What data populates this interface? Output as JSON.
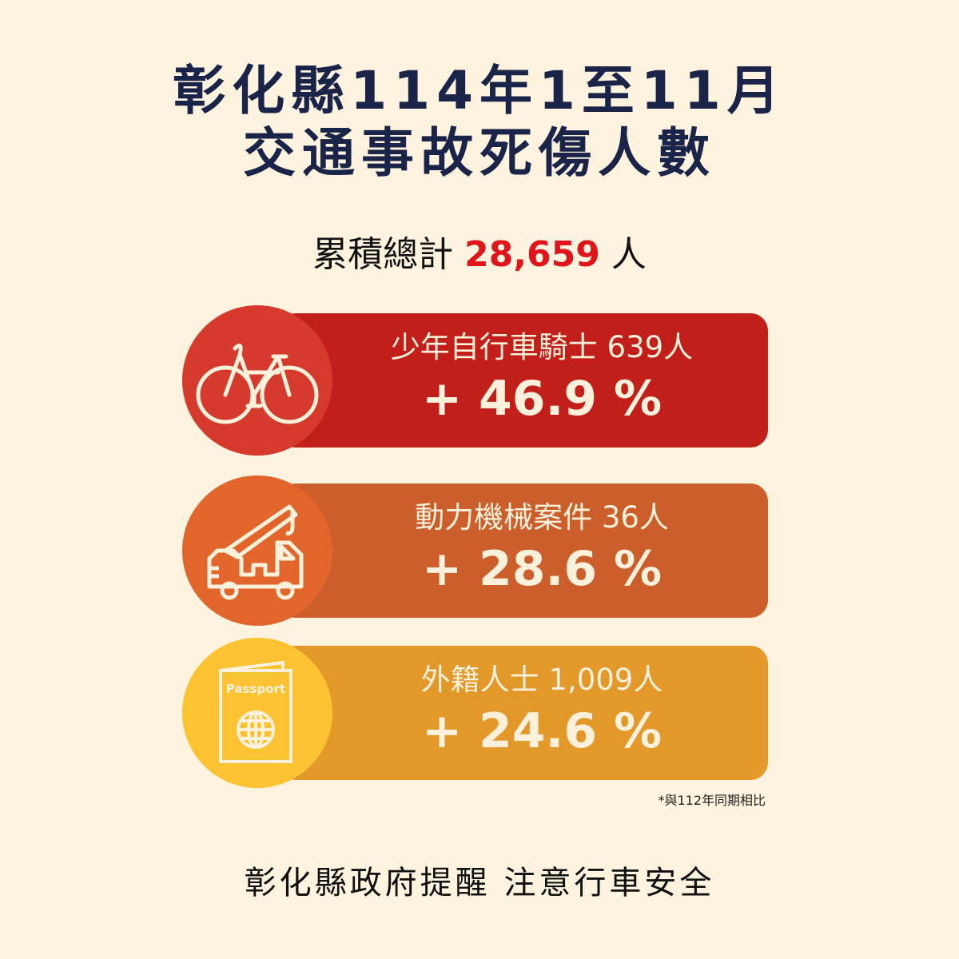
{
  "title": {
    "line1": "彰化縣114年1至11月",
    "line2": "交通事故死傷人數"
  },
  "total": {
    "label": "累積總計",
    "value": "28,659",
    "unit": "人"
  },
  "cards": [
    {
      "label": "少年自行車騎士 639人",
      "change": "+ 46.9 %",
      "icon": "bicycle-icon",
      "bar_color": "#c21f1a",
      "circle_color": "#d63a2c"
    },
    {
      "label": "動力機械案件 36人",
      "change": "+ 28.6 %",
      "icon": "crane-truck-icon",
      "bar_color": "#cc5e2b",
      "circle_color": "#e2652b"
    },
    {
      "label": "外籍人士 1,009人",
      "change": "+ 24.6 %",
      "icon": "passport-icon",
      "icon_text": "Passport",
      "bar_color": "#e3982a",
      "circle_color": "#fbc331"
    }
  ],
  "note": "*與112年同期相比",
  "footer": "彰化縣政府提醒 注意行車安全"
}
